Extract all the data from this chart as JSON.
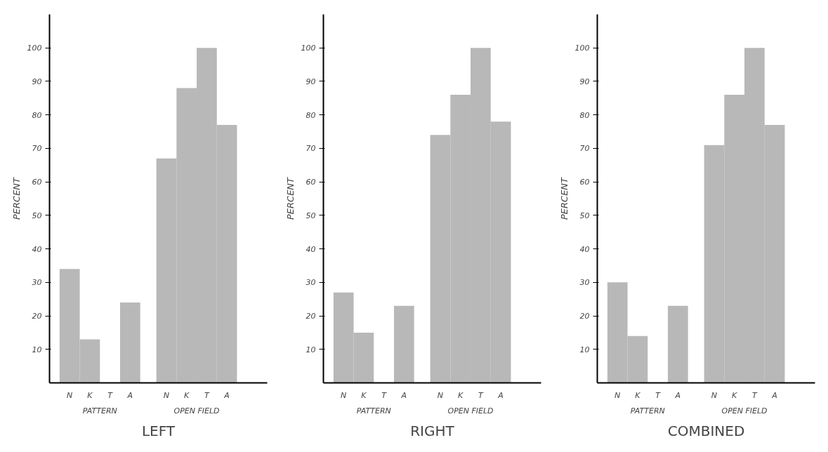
{
  "chart_data": [
    {
      "type": "bar",
      "title": "LEFT",
      "ylabel": "PERCENT",
      "categories": [
        "N",
        "K",
        "T",
        "A",
        "N",
        "K",
        "T",
        "A"
      ],
      "values": [
        34,
        13,
        0,
        24,
        67,
        88,
        100,
        77
      ],
      "color": "#b8b8b8",
      "ylim": [
        0,
        110
      ],
      "yticks": [
        10,
        20,
        30,
        40,
        50,
        60,
        70,
        80,
        90,
        100
      ],
      "annotations": [
        "PATTERN",
        "OPEN FIELD"
      ],
      "grid": false
    },
    {
      "type": "bar",
      "title": "RIGHT",
      "ylabel": "PERCENT",
      "categories": [
        "N",
        "K",
        "T",
        "A",
        "N",
        "K",
        "T",
        "A"
      ],
      "values": [
        27,
        15,
        0,
        23,
        74,
        86,
        100,
        78
      ],
      "color": "#b8b8b8",
      "ylim": [
        0,
        110
      ],
      "yticks": [
        10,
        20,
        30,
        40,
        50,
        60,
        70,
        80,
        90,
        100
      ],
      "annotations": [
        "PATTERN",
        "OPEN FIELD"
      ],
      "grid": false
    },
    {
      "type": "bar",
      "title": "COMBINED",
      "ylabel": "PERCENT",
      "categories": [
        "N",
        "K",
        "T",
        "A",
        "N",
        "K",
        "T",
        "A"
      ],
      "values": [
        30,
        14,
        0,
        23,
        71,
        86,
        100,
        77
      ],
      "color": "#b8b8b8",
      "ylim": [
        0,
        110
      ],
      "yticks": [
        10,
        20,
        30,
        40,
        50,
        60,
        70,
        80,
        90,
        100
      ],
      "annotations": [
        "PATTERN",
        "OPEN FIELD"
      ],
      "grid": false
    }
  ]
}
